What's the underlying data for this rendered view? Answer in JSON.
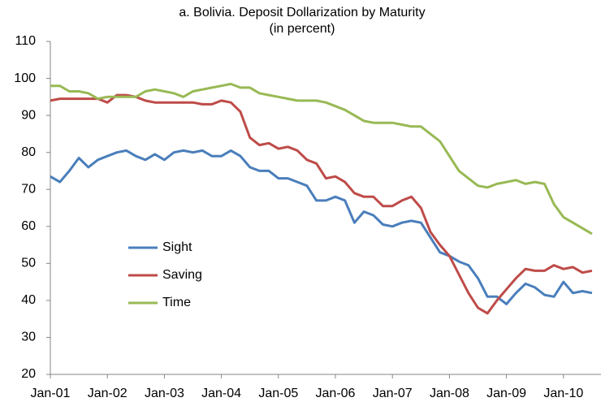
{
  "chart_data": {
    "type": "line",
    "title": "a. Bolivia. Deposit Dollarization by Maturity",
    "subtitle": "(in percent)",
    "categories": [
      "Jan-01",
      null,
      null,
      null,
      null,
      null,
      "Jan-02",
      null,
      null,
      null,
      null,
      null,
      "Jan-03",
      null,
      null,
      null,
      null,
      null,
      "Jan-04",
      null,
      null,
      null,
      null,
      null,
      "Jan-05",
      null,
      null,
      null,
      null,
      null,
      "Jan-06",
      null,
      null,
      null,
      null,
      null,
      "Jan-07",
      null,
      null,
      null,
      null,
      null,
      "Jan-08",
      null,
      null,
      null,
      null,
      null,
      "Jan-09",
      null,
      null,
      null,
      null,
      null,
      "Jan-10",
      null,
      null,
      null
    ],
    "series": [
      {
        "name": "Sight",
        "color": "#4a7ebb",
        "values": [
          73.5,
          72,
          75,
          78.5,
          76,
          78,
          79,
          80,
          80.5,
          79,
          78,
          79.5,
          78,
          80,
          80.5,
          80,
          80.5,
          79,
          79,
          80.5,
          79,
          76,
          75,
          75,
          73,
          73,
          72,
          71,
          67,
          67,
          68,
          67,
          61,
          64,
          63,
          60.5,
          60,
          61,
          61.5,
          61,
          57,
          53,
          52,
          50.5,
          49.5,
          46,
          41,
          41,
          39,
          42,
          44.5,
          43.5,
          41.5,
          41,
          45,
          42,
          42.5,
          42
        ]
      },
      {
        "name": "Saving",
        "color": "#be4b48",
        "values": [
          94,
          94.5,
          94.5,
          94.5,
          94.5,
          94.5,
          93.5,
          95.5,
          95.5,
          95,
          94,
          93.5,
          93.5,
          93.5,
          93.5,
          93.5,
          93,
          93,
          94,
          93.5,
          91,
          84,
          82,
          82.5,
          81,
          81.5,
          80.5,
          78,
          77,
          73,
          73.5,
          72,
          69,
          68,
          68,
          65.5,
          65.5,
          67,
          68,
          65,
          58.5,
          55,
          52,
          47,
          42,
          38,
          36.5,
          40,
          43,
          46,
          48.5,
          48,
          48,
          49.5,
          48.5,
          49,
          47.5,
          48
        ]
      },
      {
        "name": "Time",
        "color": "#98b954",
        "values": [
          98,
          98,
          96.5,
          96.5,
          96,
          94.5,
          95,
          95,
          95,
          95,
          96.5,
          97,
          96.5,
          96,
          95,
          96.5,
          97,
          97.5,
          98,
          98.5,
          97.5,
          97.5,
          96,
          95.5,
          95,
          94.5,
          94,
          94,
          94,
          93.5,
          92.5,
          91.5,
          90,
          88.5,
          88,
          88,
          88,
          87.5,
          87,
          87,
          85,
          83,
          79,
          75,
          73,
          71,
          70.5,
          71.5,
          72,
          72.5,
          71.5,
          72,
          71.5,
          66,
          62.5,
          61,
          59.5,
          58
        ]
      }
    ],
    "ylim": [
      20,
      110
    ],
    "yticks": [
      20,
      30,
      40,
      50,
      60,
      70,
      80,
      90,
      100,
      110
    ],
    "grid": false,
    "legend": "left"
  }
}
